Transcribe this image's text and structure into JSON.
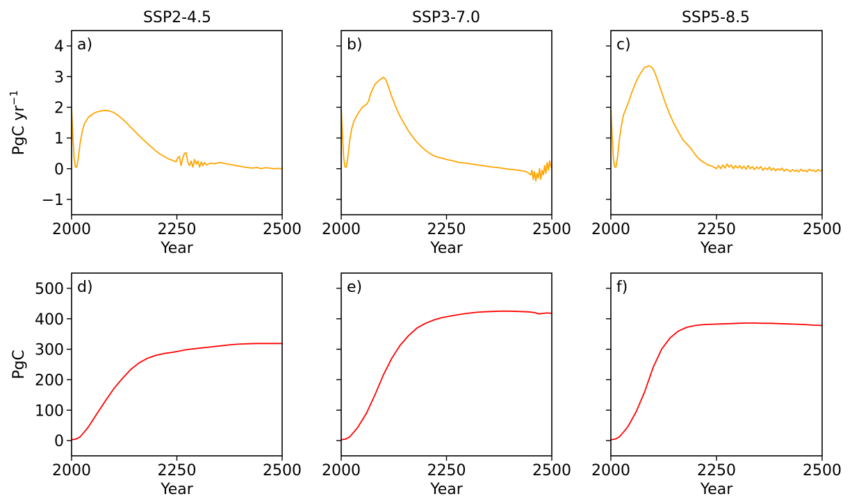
{
  "figure": {
    "columns": [
      "SSP2-4.5",
      "SSP3-7.0",
      "SSP5-8.5"
    ]
  },
  "chart_data": [
    {
      "type": "line",
      "panel": "a)",
      "title": "SSP2-4.5",
      "xlabel": "Year",
      "ylabel": "PgC yr",
      "ylabel_sup": "−1",
      "xlim": [
        2000,
        2500
      ],
      "ylim": [
        -1.5,
        4.5
      ],
      "xticks": [
        2000,
        2250,
        2500
      ],
      "yticks": [
        -1,
        0,
        1,
        2,
        3,
        4
      ],
      "ytick_labels": [
        "−1",
        "0",
        "1",
        "2",
        "3",
        "4"
      ],
      "color": "#ffa500",
      "x": [
        2000,
        2003,
        2006,
        2009,
        2012,
        2016,
        2020,
        2025,
        2030,
        2040,
        2050,
        2060,
        2070,
        2080,
        2090,
        2100,
        2110,
        2120,
        2130,
        2140,
        2150,
        2160,
        2170,
        2180,
        2190,
        2200,
        2210,
        2220,
        2230,
        2240,
        2248,
        2252,
        2256,
        2260,
        2264,
        2268,
        2272,
        2276,
        2280,
        2284,
        2288,
        2292,
        2296,
        2300,
        2304,
        2308,
        2312,
        2316,
        2320,
        2330,
        2340,
        2350,
        2360,
        2370,
        2380,
        2390,
        2400,
        2410,
        2420,
        2430,
        2440,
        2450,
        2460,
        2470,
        2480,
        2490,
        2500
      ],
      "y": [
        1.95,
        1.1,
        0.35,
        0.05,
        0.05,
        0.35,
        0.8,
        1.2,
        1.45,
        1.68,
        1.78,
        1.85,
        1.88,
        1.9,
        1.88,
        1.83,
        1.74,
        1.63,
        1.5,
        1.36,
        1.22,
        1.08,
        0.95,
        0.82,
        0.7,
        0.58,
        0.48,
        0.4,
        0.32,
        0.27,
        0.22,
        0.35,
        0.4,
        0.1,
        0.35,
        0.5,
        0.52,
        0.2,
        0.1,
        0.25,
        0.05,
        0.3,
        0.15,
        0.25,
        0.05,
        0.22,
        0.1,
        0.2,
        0.12,
        0.18,
        0.16,
        0.2,
        0.18,
        0.15,
        0.13,
        0.1,
        0.08,
        0.05,
        0.03,
        0.02,
        0.04,
        0.0,
        0.03,
        0.02,
        0.0,
        0.01,
        0.0
      ]
    },
    {
      "type": "line",
      "panel": "b)",
      "title": "SSP3-7.0",
      "xlabel": "Year",
      "ylabel": "",
      "ylabel_sup": "",
      "xlim": [
        2000,
        2500
      ],
      "ylim": [
        -1.5,
        4.5
      ],
      "xticks": [
        2000,
        2250,
        2500
      ],
      "yticks": [
        -1,
        0,
        1,
        2,
        3,
        4
      ],
      "ytick_labels": [],
      "color": "#ffa500",
      "x": [
        2000,
        2003,
        2006,
        2009,
        2012,
        2016,
        2020,
        2025,
        2030,
        2040,
        2050,
        2060,
        2065,
        2070,
        2075,
        2080,
        2090,
        2100,
        2105,
        2110,
        2115,
        2120,
        2130,
        2140,
        2150,
        2160,
        2170,
        2180,
        2190,
        2200,
        2210,
        2220,
        2230,
        2240,
        2250,
        2260,
        2270,
        2280,
        2290,
        2300,
        2310,
        2320,
        2330,
        2340,
        2350,
        2360,
        2370,
        2380,
        2390,
        2400,
        2410,
        2420,
        2430,
        2440,
        2445,
        2450,
        2453,
        2456,
        2459,
        2462,
        2465,
        2468,
        2471,
        2474,
        2477,
        2480,
        2483,
        2486,
        2489,
        2492,
        2495,
        2498,
        2500
      ],
      "y": [
        1.95,
        1.1,
        0.35,
        0.05,
        0.05,
        0.4,
        0.9,
        1.3,
        1.55,
        1.8,
        2.0,
        2.1,
        2.2,
        2.45,
        2.6,
        2.75,
        2.88,
        2.98,
        2.92,
        2.75,
        2.55,
        2.35,
        2.0,
        1.7,
        1.45,
        1.22,
        1.03,
        0.86,
        0.72,
        0.6,
        0.5,
        0.42,
        0.37,
        0.34,
        0.3,
        0.27,
        0.24,
        0.2,
        0.19,
        0.17,
        0.15,
        0.13,
        0.11,
        0.09,
        0.07,
        0.05,
        0.04,
        0.02,
        0.0,
        -0.02,
        -0.03,
        -0.05,
        -0.07,
        -0.1,
        -0.15,
        -0.2,
        -0.05,
        -0.35,
        -0.1,
        -0.4,
        -0.15,
        -0.3,
        0.0,
        -0.35,
        -0.05,
        -0.2,
        0.1,
        -0.15,
        0.2,
        -0.05,
        0.25,
        0.05,
        0.15
      ]
    },
    {
      "type": "line",
      "panel": "c)",
      "title": "SSP5-8.5",
      "xlabel": "Year",
      "ylabel": "",
      "ylabel_sup": "",
      "xlim": [
        2000,
        2500
      ],
      "ylim": [
        -1.5,
        4.5
      ],
      "xticks": [
        2000,
        2250,
        2500
      ],
      "yticks": [
        -1,
        0,
        1,
        2,
        3,
        4
      ],
      "ytick_labels": [],
      "color": "#ffa500",
      "x": [
        2000,
        2003,
        2006,
        2009,
        2012,
        2016,
        2020,
        2025,
        2030,
        2040,
        2050,
        2060,
        2070,
        2080,
        2090,
        2095,
        2100,
        2105,
        2110,
        2120,
        2130,
        2140,
        2150,
        2160,
        2170,
        2180,
        2190,
        2200,
        2210,
        2220,
        2230,
        2240,
        2250,
        2255,
        2260,
        2265,
        2270,
        2275,
        2280,
        2285,
        2290,
        2295,
        2300,
        2305,
        2310,
        2315,
        2320,
        2325,
        2330,
        2335,
        2340,
        2345,
        2350,
        2355,
        2360,
        2365,
        2370,
        2375,
        2380,
        2385,
        2390,
        2395,
        2400,
        2405,
        2410,
        2415,
        2420,
        2425,
        2430,
        2435,
        2440,
        2445,
        2450,
        2455,
        2460,
        2465,
        2470,
        2475,
        2480,
        2485,
        2490,
        2495,
        2500
      ],
      "y": [
        1.95,
        1.1,
        0.35,
        0.05,
        0.05,
        0.4,
        0.95,
        1.4,
        1.75,
        2.1,
        2.5,
        2.85,
        3.1,
        3.3,
        3.35,
        3.32,
        3.25,
        3.1,
        2.9,
        2.5,
        2.1,
        1.75,
        1.45,
        1.2,
        0.95,
        0.8,
        0.65,
        0.45,
        0.3,
        0.2,
        0.12,
        0.08,
        0.0,
        0.1,
        0.0,
        0.12,
        0.02,
        0.15,
        0.05,
        0.12,
        0.0,
        0.1,
        0.02,
        0.1,
        0.0,
        0.08,
        -0.02,
        0.1,
        0.0,
        0.07,
        -0.03,
        0.05,
        0.0,
        0.07,
        -0.05,
        0.03,
        -0.03,
        0.05,
        -0.05,
        0.02,
        -0.07,
        0.0,
        -0.05,
        0.02,
        -0.08,
        -0.02,
        -0.05,
        -0.1,
        -0.03,
        -0.08,
        -0.05,
        -0.1,
        -0.02,
        -0.08,
        -0.05,
        -0.1,
        -0.02,
        -0.07,
        -0.05,
        -0.1,
        -0.03,
        -0.07,
        -0.05
      ]
    },
    {
      "type": "line",
      "panel": "d)",
      "title": "",
      "xlabel": "Year",
      "ylabel": "PgC",
      "ylabel_sup": "",
      "xlim": [
        2000,
        2500
      ],
      "ylim": [
        -50,
        550
      ],
      "xticks": [
        2000,
        2250,
        2500
      ],
      "yticks": [
        0,
        100,
        200,
        300,
        400,
        500
      ],
      "ytick_labels": [
        "0",
        "100",
        "200",
        "300",
        "400",
        "500"
      ],
      "color": "#ff0000",
      "x": [
        2000,
        2010,
        2020,
        2030,
        2040,
        2060,
        2080,
        2100,
        2120,
        2140,
        2160,
        2180,
        2200,
        2220,
        2240,
        2260,
        2270,
        2280,
        2300,
        2320,
        2340,
        2360,
        2380,
        2400,
        2420,
        2440,
        2460,
        2480,
        2500
      ],
      "y": [
        3,
        5,
        12,
        28,
        45,
        88,
        130,
        170,
        203,
        233,
        255,
        270,
        280,
        286,
        290,
        295,
        298,
        300,
        303,
        306,
        309,
        312,
        315,
        317,
        318,
        319,
        319,
        319,
        319
      ]
    },
    {
      "type": "line",
      "panel": "e)",
      "title": "",
      "xlabel": "Year",
      "ylabel": "",
      "ylabel_sup": "",
      "xlim": [
        2000,
        2500
      ],
      "ylim": [
        -50,
        550
      ],
      "xticks": [
        2000,
        2250,
        2500
      ],
      "yticks": [
        0,
        100,
        200,
        300,
        400,
        500
      ],
      "ytick_labels": [],
      "color": "#ff0000",
      "x": [
        2000,
        2010,
        2020,
        2030,
        2040,
        2060,
        2080,
        2100,
        2120,
        2140,
        2160,
        2180,
        2200,
        2220,
        2240,
        2260,
        2280,
        2300,
        2320,
        2340,
        2360,
        2380,
        2400,
        2420,
        2440,
        2450,
        2460,
        2470,
        2480,
        2490,
        2500
      ],
      "y": [
        3,
        5,
        12,
        28,
        45,
        90,
        150,
        215,
        270,
        313,
        345,
        370,
        385,
        396,
        404,
        409,
        414,
        418,
        421,
        423,
        424,
        425,
        425,
        424,
        423,
        422,
        420,
        416,
        418,
        419,
        418
      ]
    },
    {
      "type": "line",
      "panel": "f)",
      "title": "",
      "xlabel": "Year",
      "ylabel": "",
      "ylabel_sup": "",
      "xlim": [
        2000,
        2500
      ],
      "ylim": [
        -50,
        550
      ],
      "xticks": [
        2000,
        2250,
        2500
      ],
      "yticks": [
        0,
        100,
        200,
        300,
        400,
        500
      ],
      "ytick_labels": [],
      "color": "#ff0000",
      "x": [
        2000,
        2010,
        2020,
        2030,
        2040,
        2060,
        2080,
        2100,
        2120,
        2140,
        2160,
        2180,
        2200,
        2220,
        2240,
        2260,
        2280,
        2300,
        2320,
        2340,
        2360,
        2380,
        2400,
        2420,
        2440,
        2460,
        2480,
        2500
      ],
      "y": [
        3,
        5,
        12,
        28,
        45,
        95,
        160,
        240,
        300,
        337,
        360,
        372,
        378,
        381,
        382,
        383,
        384,
        385,
        386,
        386,
        385,
        385,
        384,
        383,
        382,
        381,
        379,
        378
      ]
    }
  ]
}
